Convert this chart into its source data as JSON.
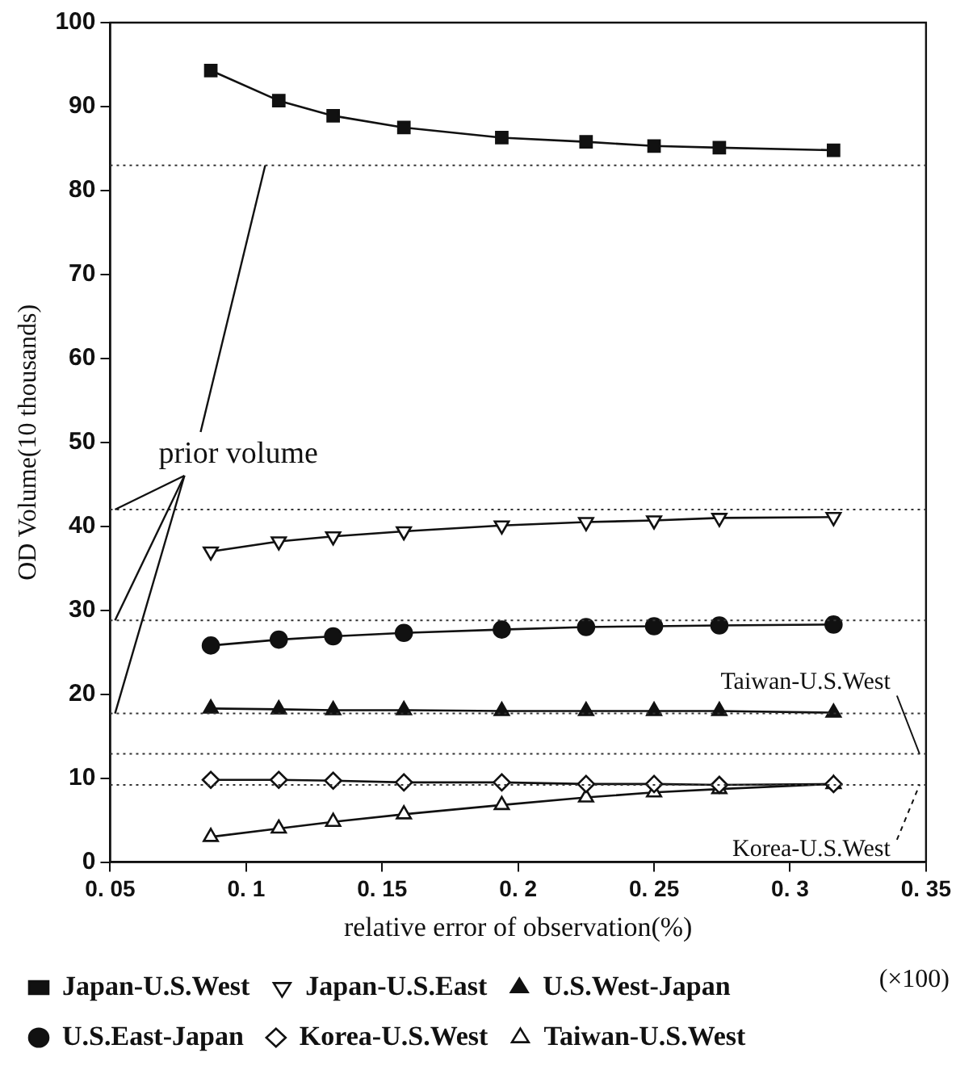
{
  "chart_data": {
    "type": "line",
    "xlabel": "relative error of observation(%)",
    "ylabel": "OD Volume(10 thousands)",
    "xlim": [
      0.05,
      0.35
    ],
    "xticks": [
      0.05,
      0.1,
      0.15,
      0.2,
      0.25,
      0.3,
      0.35
    ],
    "ylim": [
      0,
      100
    ],
    "yticks": [
      0,
      10,
      20,
      30,
      40,
      50,
      60,
      70,
      80,
      90,
      100
    ],
    "x": [
      0.087,
      0.112,
      0.132,
      0.158,
      0.194,
      0.225,
      0.25,
      0.274,
      0.316
    ],
    "series": [
      {
        "name": "Japan-U.S.West",
        "color": "#111111",
        "marker": "square",
        "values": [
          94.3,
          90.7,
          88.9,
          87.5,
          86.3,
          85.8,
          85.3,
          85.1,
          84.8
        ]
      },
      {
        "name": "Japan-U.S.East",
        "color": "#111111",
        "marker": "triangle-down-open",
        "values": [
          37.0,
          38.2,
          38.8,
          39.4,
          40.1,
          40.5,
          40.7,
          41.0,
          41.1
        ]
      },
      {
        "name": "U.S.West-Japan",
        "color": "#111111",
        "marker": "triangle",
        "values": [
          18.3,
          18.2,
          18.1,
          18.1,
          18.0,
          18.0,
          18.0,
          18.0,
          17.8
        ]
      },
      {
        "name": "U.S.East-Japan",
        "color": "#111111",
        "marker": "circle",
        "values": [
          25.8,
          26.5,
          26.9,
          27.3,
          27.7,
          28.0,
          28.1,
          28.2,
          28.3
        ]
      },
      {
        "name": "Korea-U.S.West",
        "color": "#111111",
        "marker": "diamond-open",
        "values": [
          9.8,
          9.8,
          9.7,
          9.5,
          9.5,
          9.3,
          9.3,
          9.2,
          9.3
        ]
      },
      {
        "name": "Taiwan-U.S.West",
        "color": "#111111",
        "marker": "triangle-open",
        "values": [
          3.0,
          4.0,
          4.8,
          5.7,
          6.8,
          7.7,
          8.3,
          8.7,
          9.3
        ]
      }
    ],
    "ref_lines": [
      {
        "axis": "y",
        "value": 83,
        "line_style": "dotted"
      },
      {
        "axis": "y",
        "value": 42,
        "line_style": "dotted"
      },
      {
        "axis": "y",
        "value": 28.8,
        "line_style": "dotted"
      },
      {
        "axis": "y",
        "value": 17.7,
        "line_style": "dotted"
      },
      {
        "axis": "y",
        "value": 12.9,
        "label": "Taiwan-U.S.West",
        "line_style": "dotted"
      },
      {
        "axis": "y",
        "value": 9.2,
        "label": "Korea-U.S.West",
        "line_style": "dotted"
      }
    ],
    "annotations": [
      {
        "text": "prior volume",
        "x": 0.05,
        "y": 42
      },
      "(×100)"
    ],
    "legend": "bottom",
    "grid": false,
    "line_style": "solid"
  }
}
